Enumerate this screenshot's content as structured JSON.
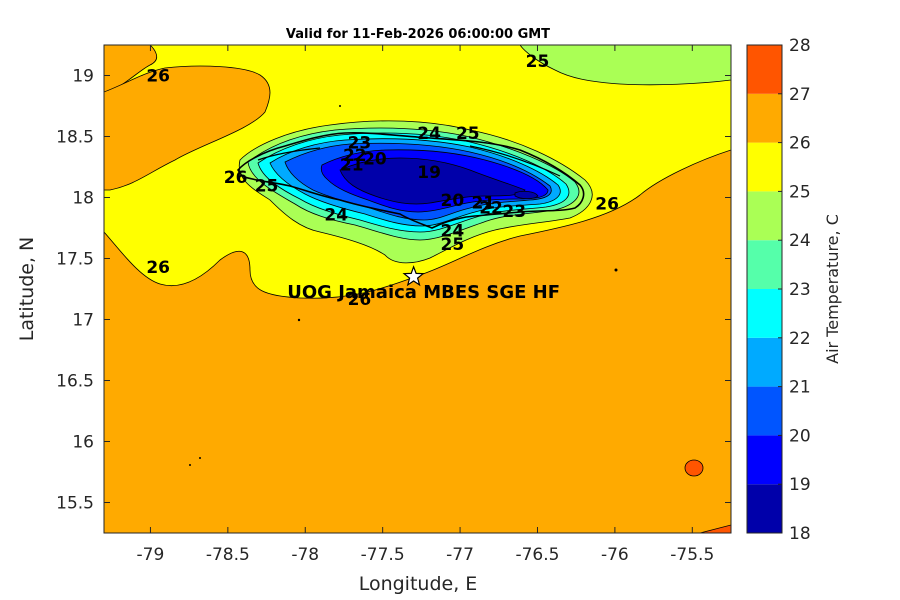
{
  "chart_data": {
    "type": "contour-map",
    "title": "Valid for 11-Feb-2026 06:00:00 GMT",
    "xlabel": "Longitude, E",
    "ylabel": "Latitude, N",
    "xlim": [
      -79.3,
      -75.25
    ],
    "ylim": [
      15.25,
      19.25
    ],
    "xticks": [
      -79,
      -78.5,
      -78,
      -77.5,
      -77,
      -76.5,
      -76,
      -75.5
    ],
    "xtick_labels": [
      "-79",
      "-78.5",
      "-78",
      "-77.5",
      "-77",
      "-76.5",
      "-76",
      "-75.5"
    ],
    "yticks": [
      15.5,
      16,
      16.5,
      17,
      17.5,
      18,
      18.5,
      19
    ],
    "ytick_labels": [
      "15.5",
      "16",
      "16.5",
      "17",
      "17.5",
      "18",
      "18.5",
      "19"
    ],
    "colorbar": {
      "label": "Air Temperature, C",
      "levels": [
        18,
        19,
        20,
        21,
        22,
        23,
        24,
        25,
        26,
        27,
        28
      ],
      "tick_labels": [
        "18",
        "19",
        "20",
        "21",
        "22",
        "23",
        "24",
        "25",
        "26",
        "27",
        "28"
      ],
      "colors": [
        "#0000aa",
        "#0000ff",
        "#0055ff",
        "#00aaff",
        "#00ffff",
        "#55ffaa",
        "#aaff55",
        "#ffff00",
        "#ffaa00",
        "#ff5500",
        "#ff0000"
      ]
    },
    "contour_labels": [
      {
        "text": "26",
        "lon": -78.95,
        "lat": 18.95
      },
      {
        "text": "25",
        "lon": -76.5,
        "lat": 19.07
      },
      {
        "text": "26",
        "lon": -78.45,
        "lat": 18.12
      },
      {
        "text": "25",
        "lon": -78.25,
        "lat": 18.05
      },
      {
        "text": "24",
        "lon": -77.2,
        "lat": 18.48
      },
      {
        "text": "25",
        "lon": -76.95,
        "lat": 18.48
      },
      {
        "text": "23",
        "lon": -77.65,
        "lat": 18.4
      },
      {
        "text": "22",
        "lon": -77.68,
        "lat": 18.3
      },
      {
        "text": "21",
        "lon": -77.7,
        "lat": 18.22
      },
      {
        "text": "20",
        "lon": -77.55,
        "lat": 18.27
      },
      {
        "text": "19",
        "lon": -77.2,
        "lat": 18.16
      },
      {
        "text": "20",
        "lon": -77.05,
        "lat": 17.93
      },
      {
        "text": "21",
        "lon": -76.85,
        "lat": 17.91
      },
      {
        "text": "22",
        "lon": -76.8,
        "lat": 17.87
      },
      {
        "text": "23",
        "lon": -76.65,
        "lat": 17.84
      },
      {
        "text": "24",
        "lon": -77.8,
        "lat": 17.81
      },
      {
        "text": "24",
        "lon": -77.05,
        "lat": 17.68
      },
      {
        "text": "25",
        "lon": -77.05,
        "lat": 17.57
      },
      {
        "text": "26",
        "lon": -76.05,
        "lat": 17.9
      },
      {
        "text": "26",
        "lon": -78.95,
        "lat": 17.38
      },
      {
        "text": "26",
        "lon": -77.65,
        "lat": 17.12
      }
    ],
    "station": {
      "name": "UOG Jamaica MBES SGE HF",
      "lon": -77.3,
      "lat": 17.35
    },
    "warm_spot": {
      "value_range": "26-27",
      "lon": -75.5,
      "lat": 15.78
    }
  }
}
